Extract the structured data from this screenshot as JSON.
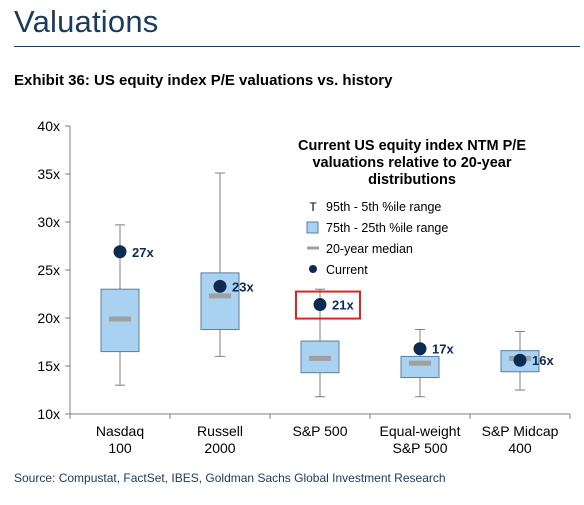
{
  "page": {
    "title": "Valuations",
    "exhibit": "Exhibit 36: US equity index P/E valuations vs. history",
    "source": "Source: Compustat, FactSet, IBES, Goldman Sachs Global Investment Research"
  },
  "chart_data": {
    "type": "box",
    "title_lines": [
      "Current US equity index NTM P/E",
      "valuations relative to 20-year",
      "distributions"
    ],
    "categories": [
      {
        "lines": [
          "Nasdaq",
          "100"
        ]
      },
      {
        "lines": [
          "Russell",
          "2000"
        ]
      },
      {
        "lines": [
          "S&P 500"
        ]
      },
      {
        "lines": [
          "Equal-weight",
          "S&P 500"
        ]
      },
      {
        "lines": [
          "S&P Midcap",
          "400"
        ]
      }
    ],
    "series": [
      {
        "name": "95th - 5th %ile range",
        "low": [
          13.0,
          16.0,
          11.8,
          11.8,
          12.5
        ],
        "high": [
          29.7,
          35.1,
          23.0,
          18.8,
          18.6
        ]
      },
      {
        "name": "75th - 25th %ile range",
        "q1": [
          16.5,
          18.8,
          14.3,
          13.8,
          14.4
        ],
        "q3": [
          23.0,
          24.7,
          17.6,
          16.0,
          16.6
        ]
      },
      {
        "name": "20-year median",
        "values": [
          19.9,
          22.3,
          15.8,
          15.3,
          15.8
        ]
      },
      {
        "name": "Current",
        "values": [
          26.9,
          23.3,
          21.4,
          16.8,
          15.6
        ]
      }
    ],
    "current_labels": [
      "27x",
      "23x",
      "21x",
      "17x",
      "16x"
    ],
    "highlighted_index": 2,
    "y_ticks": [
      "10x",
      "15x",
      "20x",
      "25x",
      "30x",
      "35x",
      "40x"
    ],
    "ylim": [
      10,
      40
    ],
    "legend": [
      {
        "symbol": "T",
        "label": "95th - 5th %ile range"
      },
      {
        "symbol": "box",
        "label": "75th - 25th %ile range"
      },
      {
        "symbol": "dash",
        "label": "20-year median"
      },
      {
        "symbol": "dot",
        "label": "Current"
      }
    ],
    "colors": {
      "box_fill": "#a9d1f0",
      "box_stroke": "#5b7ea0",
      "whisker": "#7f7f7f",
      "median": "#a0a0a0",
      "current": "#0d2b52",
      "highlight": "#d7262b"
    },
    "grid": false,
    "legend_position": "top-right"
  }
}
